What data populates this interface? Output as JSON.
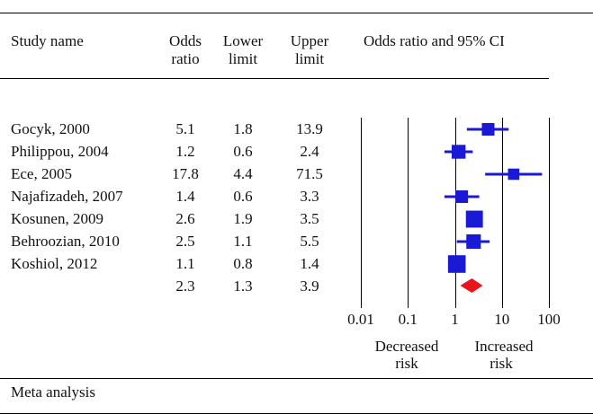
{
  "table": {
    "headers": {
      "study": "Study name",
      "or_line1": "Odds",
      "or_line2": "ratio",
      "lower_line1": "Lower",
      "lower_line2": "limit",
      "upper_line1": "Upper",
      "upper_line2": "limit",
      "plot": "Odds ratio and 95% CI"
    },
    "rows": [
      {
        "study": "Gocyk, 2000",
        "or": "5.1",
        "lower": "1.8",
        "upper": "13.9"
      },
      {
        "study": "Philippou, 2004",
        "or": "1.2",
        "lower": "0.6",
        "upper": "2.4"
      },
      {
        "study": "Ece, 2005",
        "or": "17.8",
        "lower": "4.4",
        "upper": "71.5"
      },
      {
        "study": "Najafizadeh, 2007",
        "or": "1.4",
        "lower": "0.6",
        "upper": "3.3"
      },
      {
        "study": "Kosunen, 2009",
        "or": "2.6",
        "lower": "1.9",
        "upper": "3.5"
      },
      {
        "study": "Behroozian, 2010",
        "or": "2.5",
        "lower": "1.1",
        "upper": "5.5"
      },
      {
        "study": "Koshiol, 2012",
        "or": "1.1",
        "lower": "0.8",
        "upper": "1.4"
      }
    ],
    "summary": {
      "or": "2.3",
      "lower": "1.3",
      "upper": "3.9"
    },
    "footer": "Meta analysis"
  },
  "chart_data": {
    "type": "forest",
    "title": "Odds ratio and 95% CI",
    "scale": "log",
    "xlim": [
      0.01,
      100
    ],
    "ticks": [
      "0.01",
      "0.1",
      "1",
      "10",
      "100"
    ],
    "left_label_line1": "Decreased",
    "left_label_line2": "risk",
    "right_label_line1": "Increased",
    "right_label_line2": "risk",
    "studies": [
      {
        "name": "Gocyk, 2000",
        "or": 5.1,
        "lower": 1.8,
        "upper": 13.9,
        "weight": 1.0
      },
      {
        "name": "Philippou, 2004",
        "or": 1.2,
        "lower": 0.6,
        "upper": 2.4,
        "weight": 1.1
      },
      {
        "name": "Ece, 2005",
        "or": 17.8,
        "lower": 4.4,
        "upper": 71.5,
        "weight": 0.9
      },
      {
        "name": "Najafizadeh, 2007",
        "or": 1.4,
        "lower": 0.6,
        "upper": 3.3,
        "weight": 1.0
      },
      {
        "name": "Kosunen, 2009",
        "or": 2.6,
        "lower": 1.9,
        "upper": 3.5,
        "weight": 1.35
      },
      {
        "name": "Behroozian, 2010",
        "or": 2.5,
        "lower": 1.1,
        "upper": 5.5,
        "weight": 1.15
      },
      {
        "name": "Koshiol, 2012",
        "or": 1.1,
        "lower": 0.8,
        "upper": 1.4,
        "weight": 1.4
      }
    ],
    "summary": {
      "or": 2.3,
      "lower": 1.3,
      "upper": 3.9
    },
    "colors": {
      "study": "#1a1ad6",
      "summary": "#e8151b",
      "axis": "#000000"
    }
  }
}
